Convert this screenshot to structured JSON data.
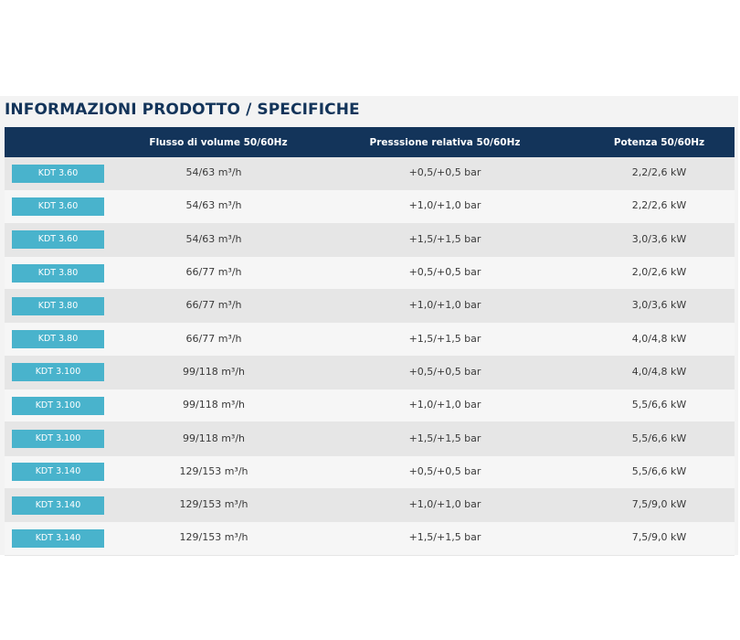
{
  "title": "INFORMAZIONI PRODOTTO / SPECIFICHE",
  "headers": {
    "model": "",
    "flow": "Flusso di volume 50/60Hz",
    "pressure": "Presssione relativa 50/60Hz",
    "power": "Potenza 50/60Hz"
  },
  "rows": [
    {
      "model": "KDT 3.60",
      "flow": "54/63 m³/h",
      "pressure": "+0,5/+0,5 bar",
      "power": "2,2/2,6 kW"
    },
    {
      "model": "KDT 3.60",
      "flow": "54/63 m³/h",
      "pressure": "+1,0/+1,0 bar",
      "power": "2,2/2,6 kW"
    },
    {
      "model": "KDT 3.60",
      "flow": "54/63 m³/h",
      "pressure": "+1,5/+1,5 bar",
      "power": "3,0/3,6 kW"
    },
    {
      "model": "KDT 3.80",
      "flow": "66/77 m³/h",
      "pressure": "+0,5/+0,5 bar",
      "power": "2,0/2,6 kW"
    },
    {
      "model": "KDT 3.80",
      "flow": "66/77 m³/h",
      "pressure": "+1,0/+1,0 bar",
      "power": "3,0/3,6 kW"
    },
    {
      "model": "KDT 3.80",
      "flow": "66/77 m³/h",
      "pressure": "+1,5/+1,5 bar",
      "power": "4,0/4,8 kW"
    },
    {
      "model": "KDT 3.100",
      "flow": "99/118 m³/h",
      "pressure": "+0,5/+0,5 bar",
      "power": "4,0/4,8 kW"
    },
    {
      "model": "KDT 3.100",
      "flow": "99/118 m³/h",
      "pressure": "+1,0/+1,0 bar",
      "power": "5,5/6,6 kW"
    },
    {
      "model": "KDT 3.100",
      "flow": "99/118 m³/h",
      "pressure": "+1,5/+1,5 bar",
      "power": "5,5/6,6 kW"
    },
    {
      "model": "KDT 3.140",
      "flow": "129/153 m³/h",
      "pressure": "+0,5/+0,5 bar",
      "power": "5,5/6,6 kW"
    },
    {
      "model": "KDT 3.140",
      "flow": "129/153 m³/h",
      "pressure": "+1,0/+1,0 bar",
      "power": "7,5/9,0 kW"
    },
    {
      "model": "KDT 3.140",
      "flow": "129/153 m³/h",
      "pressure": "+1,5/+1,5 bar",
      "power": "7,5/9,0 kW"
    }
  ],
  "colors": {
    "header_bg": "#13345a",
    "title": "#13345a",
    "badge_bg": "#49b3cc",
    "row_odd": "#e6e6e6",
    "row_even": "#f6f6f6"
  }
}
